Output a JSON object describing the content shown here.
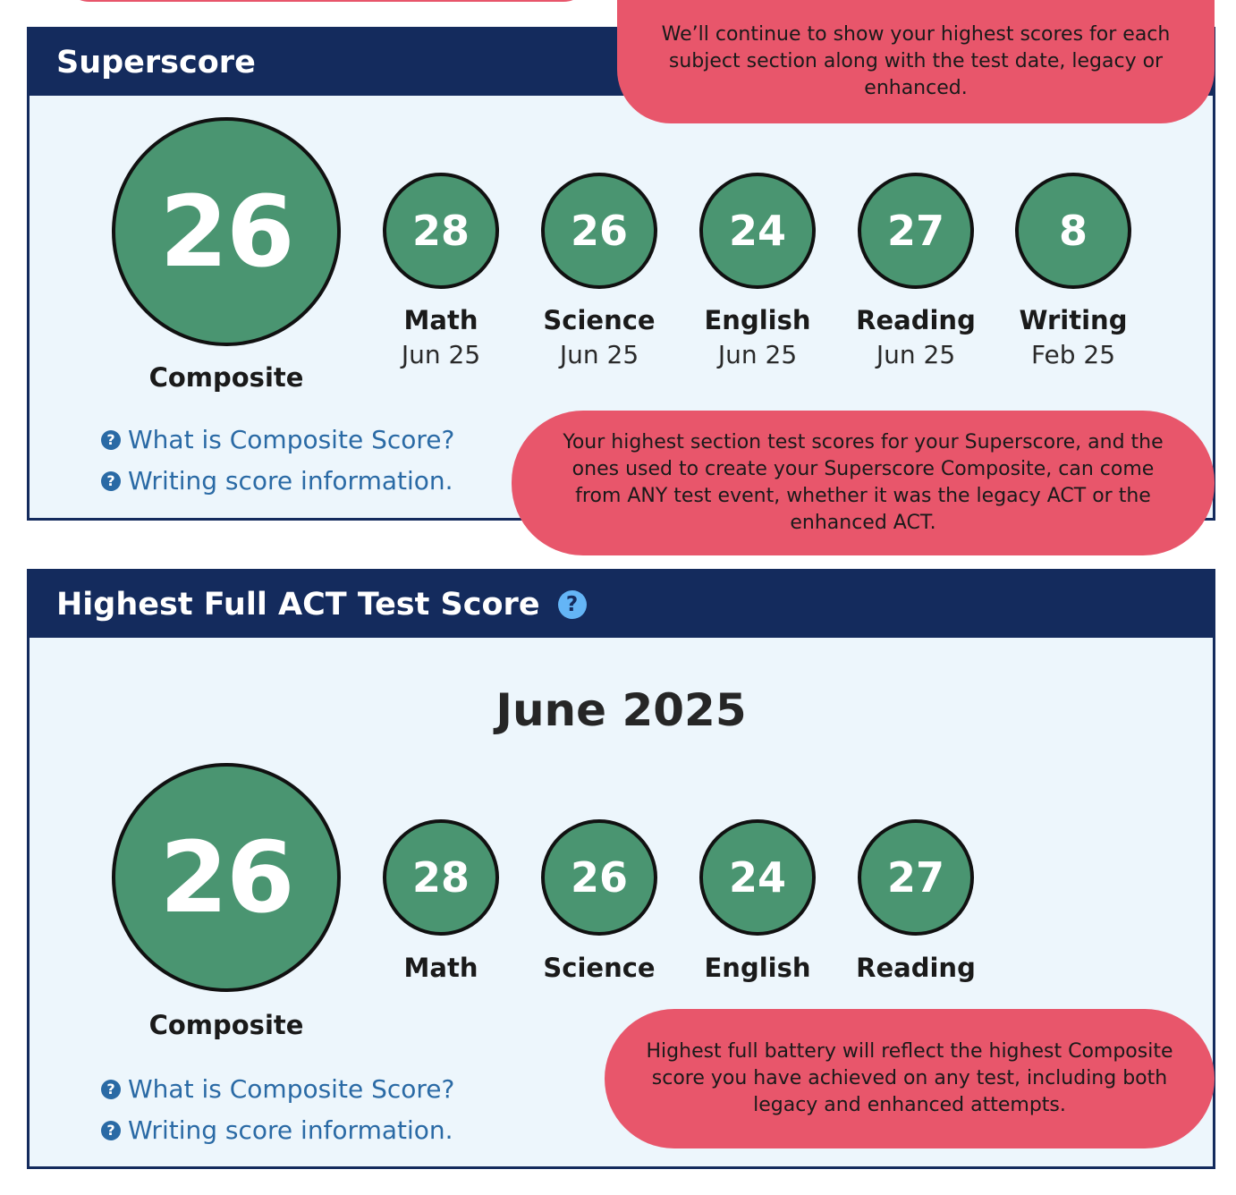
{
  "superscore": {
    "title": "Superscore",
    "composite": {
      "score": "26",
      "label": "Composite"
    },
    "sections": [
      {
        "score": "28",
        "label": "Math",
        "date": "Jun 25"
      },
      {
        "score": "26",
        "label": "Science",
        "date": "Jun 25"
      },
      {
        "score": "24",
        "label": "English",
        "date": "Jun 25"
      },
      {
        "score": "27",
        "label": "Reading",
        "date": "Jun 25"
      },
      {
        "score": "8",
        "label": "Writing",
        "date": "Feb 25"
      }
    ],
    "links": {
      "composite": "What is Composite Score?",
      "writing": "Writing score information."
    }
  },
  "highest": {
    "title": "Highest Full ACT Test Score",
    "help_icon": "question-circle-icon",
    "month": "June 2025",
    "composite": {
      "score": "26",
      "label": "Composite"
    },
    "sections": [
      {
        "score": "28",
        "label": "Math"
      },
      {
        "score": "26",
        "label": "Science"
      },
      {
        "score": "24",
        "label": "English"
      },
      {
        "score": "27",
        "label": "Reading"
      }
    ],
    "links": {
      "composite": "What is Composite Score?",
      "writing": "Writing score information."
    }
  },
  "callouts": {
    "top": "We’ll continue to show your highest scores for each subject section along with the test date, legacy or enhanced.",
    "middle": "Your highest section test scores for your Superscore, and the ones used to create your Superscore Composite, can come from ANY test event, whether it was the legacy ACT or the enhanced ACT.",
    "bottom": "Highest full battery will reflect the highest Composite score you have achieved on any test, including both legacy and enhanced attempts."
  },
  "colors": {
    "header": "#142b5d",
    "panel_bg": "#edf6fc",
    "score_green": "#4a9571",
    "callout_red": "#e8566b",
    "link_blue": "#2a6aa5"
  }
}
